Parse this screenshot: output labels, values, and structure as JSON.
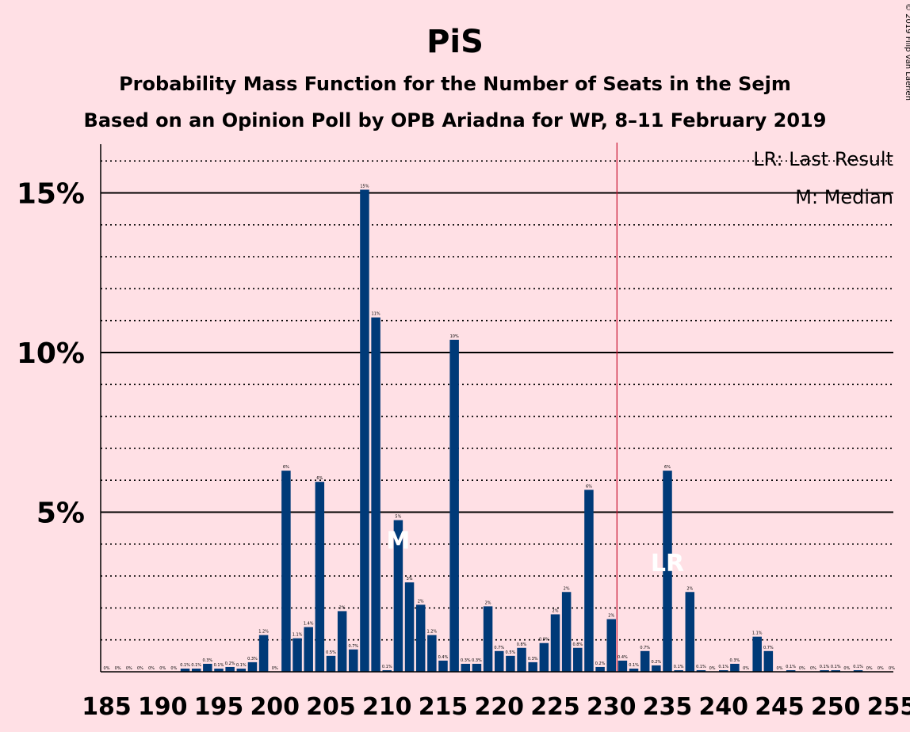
{
  "title": "PiS",
  "subtitle": "Probability Mass Function for the Number of Seats in the Sejm",
  "subtitle2": "Based on an Opinion Poll by OPB Ariadna for WP, 8–11 February 2019",
  "copyright": "© 2019 Filip van Laenen",
  "legend": {
    "lr": "LR: Last Result",
    "m": "M: Median"
  },
  "colors": {
    "background": "#ffe0e5",
    "bar": "#003a78",
    "majority_line": "#c8102e",
    "grid": "#000000"
  },
  "chart_data": {
    "type": "bar",
    "x": [
      185,
      186,
      187,
      188,
      189,
      190,
      191,
      192,
      193,
      194,
      195,
      196,
      197,
      198,
      199,
      200,
      201,
      202,
      203,
      204,
      205,
      206,
      207,
      208,
      209,
      210,
      211,
      212,
      213,
      214,
      215,
      216,
      217,
      218,
      219,
      220,
      221,
      222,
      223,
      224,
      225,
      226,
      227,
      228,
      229,
      230,
      231,
      232,
      233,
      234,
      235,
      236,
      237,
      238,
      239,
      240,
      241,
      242,
      243,
      244,
      245,
      246,
      247,
      248,
      249,
      250,
      251,
      252,
      253,
      254,
      255
    ],
    "values": [
      0,
      0,
      0,
      0,
      0,
      0,
      0,
      0.1,
      0.1,
      0.25,
      0.1,
      0.15,
      0.1,
      0.3,
      1.15,
      0,
      6.3,
      1.05,
      1.4,
      5.95,
      0.5,
      1.9,
      0.7,
      15.1,
      11.1,
      0.05,
      4.75,
      2.8,
      2.1,
      1.15,
      0.35,
      10.4,
      0.25,
      0.25,
      2.05,
      0.65,
      0.5,
      0.75,
      0.3,
      0.9,
      1.8,
      2.5,
      0.75,
      5.7,
      0.15,
      1.65,
      0.35,
      0.1,
      0.65,
      0.2,
      6.3,
      0.05,
      2.5,
      0.05,
      0,
      0.05,
      0.25,
      0,
      1.1,
      0.65,
      0,
      0.05,
      0,
      0,
      0.05,
      0.05,
      0,
      0.05,
      0,
      0,
      0
    ],
    "labels": [
      "0%",
      "0%",
      "0%",
      "0%",
      "0%",
      "0%",
      "0%",
      "0.1%",
      "0.1%",
      "0.3%",
      "0.1%",
      "0.2%",
      "0.1%",
      "0.3%",
      "1.2%",
      "0%",
      "6%",
      "1.1%",
      "1.4%",
      "6%",
      "0.5%",
      "2%",
      "0.7%",
      "15%",
      "11%",
      "0.1%",
      "5%",
      "3%",
      "2%",
      "1.2%",
      "0.4%",
      "10%",
      "0.3%",
      "0.3%",
      "2%",
      "0.7%",
      "0.5%",
      "0.8%",
      "0.3%",
      "0.9%",
      "2%",
      "2%",
      "0.8%",
      "6%",
      "0.2%",
      "2%",
      "0.4%",
      "0.1%",
      "0.7%",
      "0.2%",
      "6%",
      "0.1%",
      "2%",
      "0.1%",
      "0%",
      "0.1%",
      "0.3%",
      "0%",
      "1.1%",
      "0.7%",
      "0%",
      "0.1%",
      "0%",
      "0%",
      "0.1%",
      "0.1%",
      "0%",
      "0.1%",
      "0%",
      "0%",
      "0%"
    ],
    "xticks": [
      185,
      190,
      195,
      200,
      205,
      210,
      215,
      220,
      225,
      230,
      235,
      240,
      245,
      250,
      255
    ],
    "yticks": [
      5,
      10,
      15
    ],
    "ytick_labels": [
      "5%",
      "10%",
      "15%"
    ],
    "ylim": [
      0,
      16.5
    ],
    "majority_threshold": 230.5,
    "last_result": 235,
    "median": 211,
    "markers": {
      "median": "M",
      "last_result": "LR"
    }
  }
}
